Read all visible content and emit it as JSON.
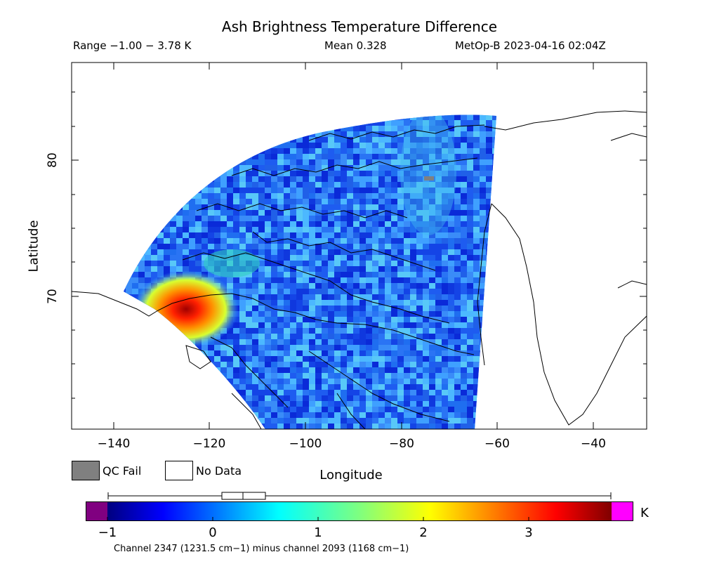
{
  "header": {
    "title": "Ash Brightness Temperature Difference",
    "range": "Range −1.00 − 3.78 K",
    "mean": "Mean 0.328",
    "satellite": "MetOp-B 2023-04-16 02:04Z"
  },
  "axes": {
    "ylabel": "Latitude",
    "xlabel": "Longitude",
    "yticks": [
      "80",
      "70"
    ],
    "xticks": [
      "−140",
      "−120",
      "−100",
      "−80",
      "−60",
      "−40"
    ]
  },
  "legend": {
    "qc_fail": "QC Fail",
    "no_data": "No Data",
    "qc_fail_color": "#808080",
    "no_data_color": "#ffffff"
  },
  "colorbar": {
    "ticks": [
      "−1",
      "0",
      "1",
      "2",
      "3"
    ],
    "unit": "K",
    "under_color": "#800080",
    "over_color": "#ff00ff",
    "min": -1.0,
    "max": 3.78,
    "box_stats": {
      "p25": 0.08,
      "median": 0.28,
      "p75": 0.5,
      "whisker_low": -1.0,
      "whisker_high": 3.78
    }
  },
  "caption": "Channel 2347 (1231.5 cm−1) minus channel 2093 (1168 cm−1)",
  "chart_data": {
    "type": "heatmap",
    "title": "Ash Brightness Temperature Difference",
    "xlabel": "Longitude",
    "ylabel": "Latitude",
    "xlim": [
      -150,
      -28
    ],
    "ylim": [
      60,
      87
    ],
    "value_range": [
      -1.0,
      3.78
    ],
    "mean": 0.328,
    "unit": "K",
    "hotspot": {
      "lon": -120,
      "lat": 69,
      "value": 3.5
    }
  }
}
